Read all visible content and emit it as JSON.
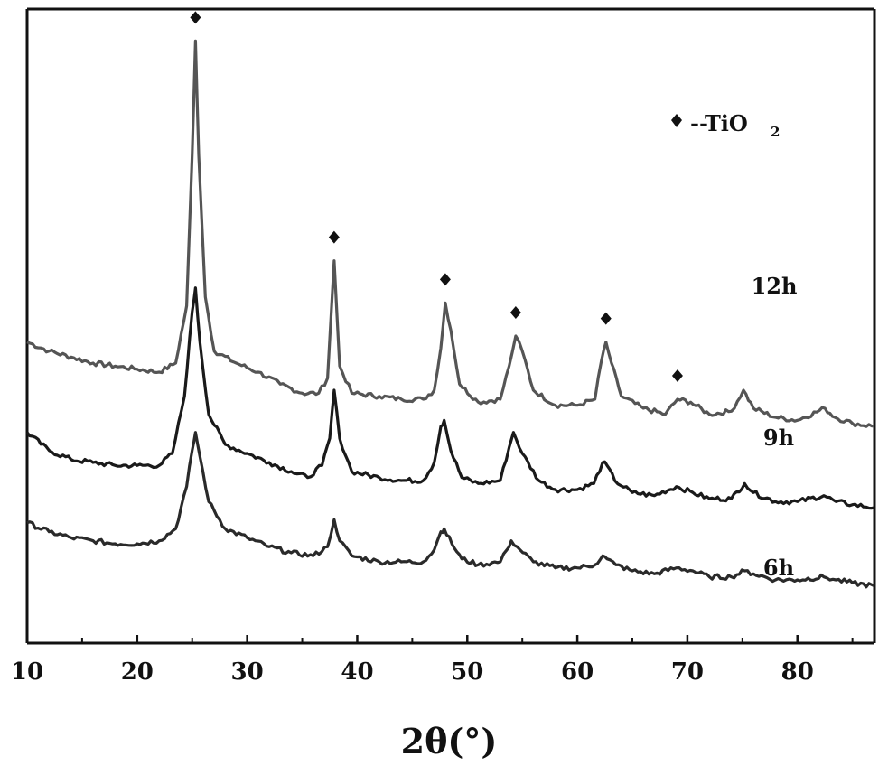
{
  "chart_data": {
    "type": "line",
    "xlabel": "2θ(°)",
    "ylabel": "",
    "xlim": [
      10,
      87
    ],
    "x_ticks": [
      10,
      20,
      30,
      40,
      50,
      60,
      70,
      80
    ],
    "grid": false,
    "legend": {
      "marker": "diamond",
      "text": "--TiO",
      "subscript": "2",
      "placement": "top-right"
    },
    "phase_markers": {
      "name": "TiO2",
      "x": [
        25.3,
        37.9,
        48.0,
        54.4,
        62.6,
        69.1
      ]
    },
    "series": [
      {
        "name": "12h",
        "color": "#555555",
        "points": [
          [
            10,
            100
          ],
          [
            12,
            97
          ],
          [
            14,
            95
          ],
          [
            16,
            93
          ],
          [
            18,
            92
          ],
          [
            20,
            91
          ],
          [
            22,
            90
          ],
          [
            23.5,
            93
          ],
          [
            24.5,
            112
          ],
          [
            25,
            162
          ],
          [
            25.3,
            200
          ],
          [
            25.6,
            162
          ],
          [
            26.2,
            115
          ],
          [
            27,
            97
          ],
          [
            29,
            93
          ],
          [
            31,
            90
          ],
          [
            33,
            86
          ],
          [
            35,
            83
          ],
          [
            36.5,
            83
          ],
          [
            37.3,
            88
          ],
          [
            37.9,
            127
          ],
          [
            38.4,
            92
          ],
          [
            39.5,
            83
          ],
          [
            42,
            82
          ],
          [
            44,
            81
          ],
          [
            46,
            81
          ],
          [
            47,
            84
          ],
          [
            47.6,
            98
          ],
          [
            48.0,
            113
          ],
          [
            48.5,
            104
          ],
          [
            49.3,
            86
          ],
          [
            51,
            80
          ],
          [
            53,
            81
          ],
          [
            53.8,
            92
          ],
          [
            54.4,
            102
          ],
          [
            55,
            97
          ],
          [
            56,
            84
          ],
          [
            58,
            79
          ],
          [
            60,
            79
          ],
          [
            61.6,
            81
          ],
          [
            62.2,
            94
          ],
          [
            62.6,
            100
          ],
          [
            63.1,
            93
          ],
          [
            64,
            82
          ],
          [
            66,
            78
          ],
          [
            68,
            76
          ],
          [
            69.1,
            81
          ],
          [
            70.3,
            80
          ],
          [
            72,
            76
          ],
          [
            74,
            77
          ],
          [
            75.1,
            84
          ],
          [
            76,
            78
          ],
          [
            78,
            75
          ],
          [
            80,
            74
          ],
          [
            82.5,
            78
          ],
          [
            83.4,
            75
          ],
          [
            85,
            73
          ],
          [
            87,
            72
          ]
        ]
      },
      {
        "name": "9h",
        "color": "#1a1a1a",
        "points": [
          [
            10,
            70
          ],
          [
            12,
            64
          ],
          [
            14,
            61
          ],
          [
            16,
            60
          ],
          [
            18,
            59
          ],
          [
            20,
            59
          ],
          [
            22,
            59
          ],
          [
            23.2,
            63
          ],
          [
            24.3,
            82
          ],
          [
            25,
            110
          ],
          [
            25.3,
            118
          ],
          [
            25.7,
            100
          ],
          [
            26.5,
            76
          ],
          [
            28,
            66
          ],
          [
            30,
            63
          ],
          [
            32,
            60
          ],
          [
            34,
            57
          ],
          [
            35.5,
            55
          ],
          [
            36.8,
            59
          ],
          [
            37.5,
            68
          ],
          [
            37.9,
            84
          ],
          [
            38.4,
            68
          ],
          [
            39.5,
            57
          ],
          [
            42,
            55
          ],
          [
            44,
            54
          ],
          [
            46,
            54
          ],
          [
            47,
            60
          ],
          [
            47.6,
            72
          ],
          [
            47.9,
            74
          ],
          [
            48.5,
            64
          ],
          [
            49.5,
            55
          ],
          [
            51,
            53
          ],
          [
            53,
            54
          ],
          [
            53.8,
            65
          ],
          [
            54.2,
            70
          ],
          [
            55,
            63
          ],
          [
            56.5,
            54
          ],
          [
            58,
            51
          ],
          [
            60,
            51
          ],
          [
            61.5,
            53
          ],
          [
            62.3,
            60
          ],
          [
            62.7,
            59
          ],
          [
            63.4,
            54
          ],
          [
            65,
            50
          ],
          [
            67,
            49
          ],
          [
            69,
            52
          ],
          [
            70.5,
            50
          ],
          [
            72,
            48
          ],
          [
            74,
            48
          ],
          [
            75.2,
            53
          ],
          [
            76,
            50
          ],
          [
            78,
            47
          ],
          [
            80,
            47
          ],
          [
            82.4,
            49
          ],
          [
            83.5,
            47
          ],
          [
            85,
            46
          ],
          [
            87,
            45
          ]
        ]
      },
      {
        "name": "6h",
        "color": "#2a2a2a",
        "points": [
          [
            10,
            40
          ],
          [
            12,
            37
          ],
          [
            14,
            35
          ],
          [
            16,
            34
          ],
          [
            18,
            33
          ],
          [
            20,
            33
          ],
          [
            22,
            34
          ],
          [
            23.5,
            38
          ],
          [
            24.5,
            52
          ],
          [
            25,
            64
          ],
          [
            25.3,
            70
          ],
          [
            25.7,
            62
          ],
          [
            26.5,
            47
          ],
          [
            28,
            38
          ],
          [
            30,
            35
          ],
          [
            32,
            32
          ],
          [
            34,
            30
          ],
          [
            36,
            29
          ],
          [
            37.3,
            32
          ],
          [
            37.9,
            41
          ],
          [
            38.4,
            34
          ],
          [
            39.5,
            29
          ],
          [
            42,
            27
          ],
          [
            44,
            27
          ],
          [
            46,
            27
          ],
          [
            47,
            31
          ],
          [
            47.6,
            37
          ],
          [
            47.9,
            38
          ],
          [
            48.6,
            33
          ],
          [
            49.5,
            28
          ],
          [
            51,
            26
          ],
          [
            53,
            27
          ],
          [
            53.6,
            31
          ],
          [
            54,
            34
          ],
          [
            54.8,
            31
          ],
          [
            56,
            27
          ],
          [
            58,
            25
          ],
          [
            60,
            25
          ],
          [
            61.6,
            26
          ],
          [
            62.3,
            29
          ],
          [
            62.7,
            28
          ],
          [
            63.5,
            26
          ],
          [
            65,
            24
          ],
          [
            67,
            23
          ],
          [
            69,
            25
          ],
          [
            70.5,
            24
          ],
          [
            72,
            22
          ],
          [
            74,
            22
          ],
          [
            75.2,
            24
          ],
          [
            76,
            23
          ],
          [
            78,
            21
          ],
          [
            80,
            21
          ],
          [
            82.4,
            22
          ],
          [
            83.5,
            21
          ],
          [
            85,
            20
          ],
          [
            87,
            19
          ]
        ]
      }
    ]
  }
}
